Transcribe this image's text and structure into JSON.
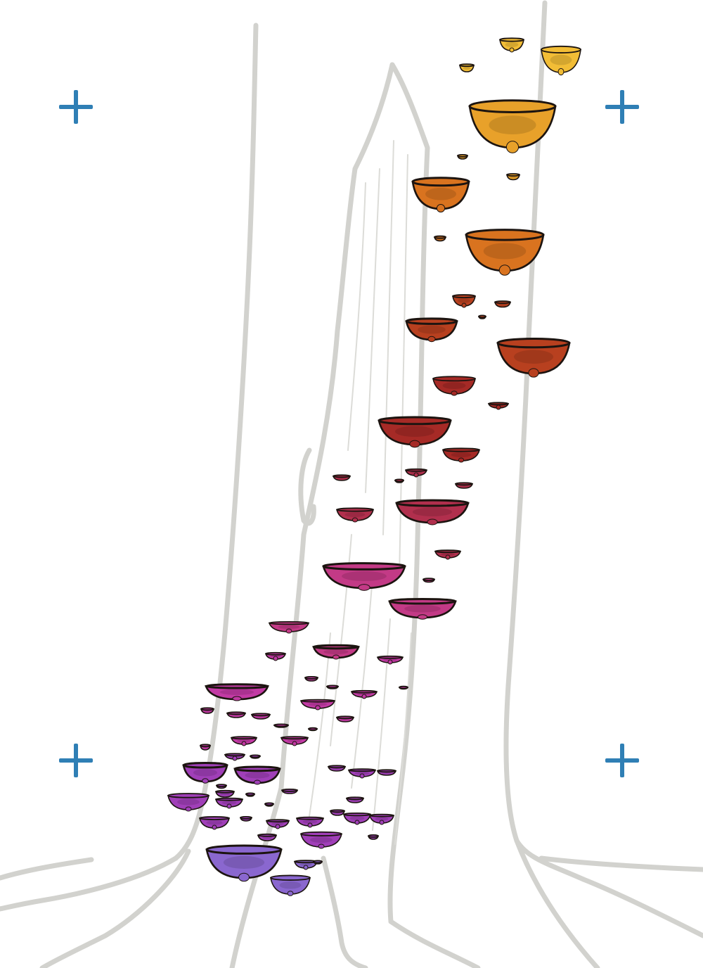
{
  "scene": {
    "subject": "tree-trunk-with-bracket-fungi",
    "icons": [
      "registration-cross-icon"
    ],
    "colors": {
      "mark": "#2f7fb5",
      "outline": "#d2d2ce",
      "ink": "#1c1410",
      "gradient": [
        "#f2bd36",
        "#e8a12a",
        "#d9731f",
        "#b8401f",
        "#a62a26",
        "#b12f4d",
        "#c33a86",
        "#c23aa4",
        "#a03fb8",
        "#8a67cf"
      ]
    }
  }
}
